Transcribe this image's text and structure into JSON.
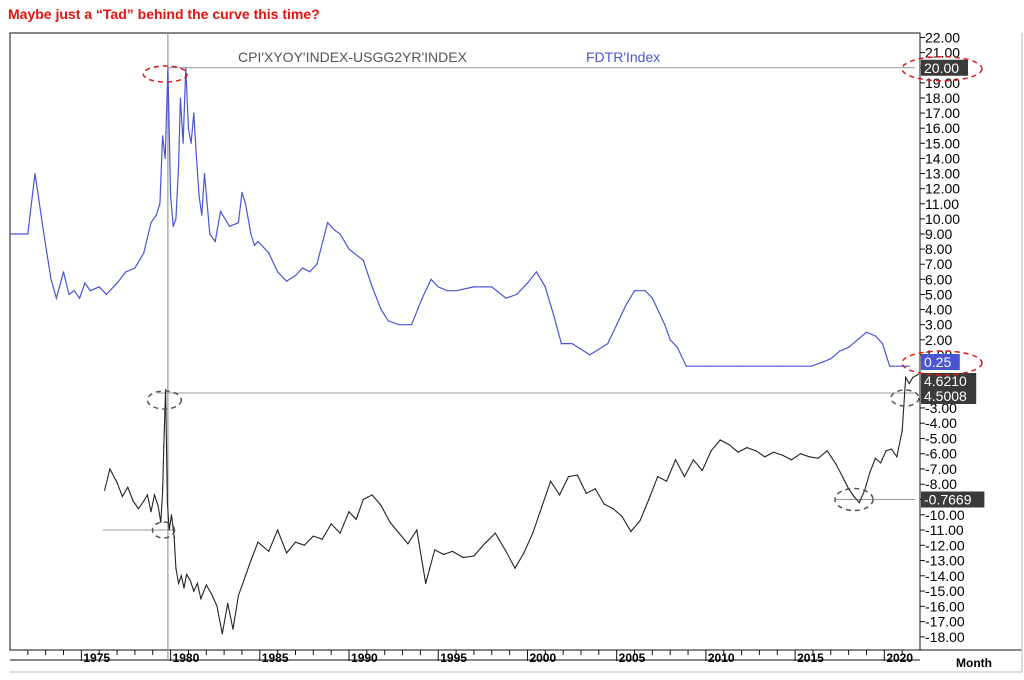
{
  "headline": "Maybe just a “Tad” behind the curve this time?",
  "colors": {
    "headline": "#e8100f",
    "fdtr_line": "#4a55d6",
    "spread_line": "#222222",
    "badge_dark": "#3a3a3a",
    "badge_blue": "#4a55d6",
    "annotation_red": "#d81b1b",
    "annotation_gray": "#555555"
  },
  "x_unit_label": "Month",
  "chart_data": [
    {
      "type": "line",
      "panel": "top",
      "legend": [
        {
          "label": "CPI'XYOY'INDEX-USGG2YR'INDEX",
          "color": "#555555"
        },
        {
          "label": "FDTR'Index",
          "color": "#4a55d6"
        }
      ],
      "series": [
        {
          "name": "FDTR'Index",
          "x": [
            1971.0,
            1972.0,
            1972.4,
            1972.9,
            1973.3,
            1973.6,
            1974.0,
            1974.3,
            1974.6,
            1974.9,
            1975.2,
            1975.5,
            1976.0,
            1976.4,
            1977.0,
            1977.5,
            1978.0,
            1978.5,
            1978.9,
            1979.2,
            1979.4,
            1979.55,
            1979.7,
            1979.85,
            1980.0,
            1980.15,
            1980.3,
            1980.45,
            1980.55,
            1980.7,
            1980.85,
            1981.0,
            1981.15,
            1981.3,
            1981.45,
            1981.6,
            1981.75,
            1981.9,
            1982.2,
            1982.5,
            1982.8,
            1983.3,
            1983.8,
            1984.0,
            1984.2,
            1984.5,
            1984.7,
            1984.9,
            1985.5,
            1986.0,
            1986.5,
            1987.0,
            1987.4,
            1987.8,
            1988.2,
            1988.8,
            1989.2,
            1989.5,
            1990.0,
            1990.8,
            1991.3,
            1991.8,
            1992.2,
            1992.8,
            1993.5,
            1994.1,
            1994.6,
            1995.0,
            1995.5,
            1996.0,
            1997.0,
            1998.0,
            1998.8,
            1999.4,
            2000.0,
            2000.5,
            2001.0,
            2001.5,
            2001.9,
            2002.5,
            2003.5,
            2004.5,
            2005.0,
            2005.5,
            2006.0,
            2006.6,
            2007.0,
            2007.7,
            2008.0,
            2008.4,
            2008.9,
            2010.0,
            2012.0,
            2014.0,
            2015.9,
            2016.5,
            2017.0,
            2017.5,
            2018.0,
            2018.5,
            2019.0,
            2019.5,
            2019.9,
            2020.1,
            2020.3,
            2021.0,
            2021.4
          ],
          "values": [
            9.0,
            9.0,
            13.0,
            9.0,
            6.0,
            4.75,
            6.5,
            5.0,
            5.25,
            4.75,
            5.75,
            5.25,
            5.5,
            5.0,
            5.75,
            6.5,
            6.75,
            7.75,
            9.75,
            10.25,
            11.0,
            15.5,
            14.0,
            20.0,
            11.5,
            9.5,
            10.0,
            13.5,
            18.0,
            15.0,
            20.0,
            16.0,
            15.0,
            17.0,
            14.0,
            11.5,
            10.25,
            13.0,
            9.0,
            8.5,
            10.5,
            9.5,
            9.75,
            11.75,
            11.0,
            9.0,
            8.25,
            8.5,
            7.75,
            6.5,
            5.875,
            6.25,
            6.75,
            6.5,
            7.0,
            9.75,
            9.25,
            9.0,
            8.0,
            7.25,
            5.5,
            4.0,
            3.25,
            3.0,
            3.0,
            4.75,
            6.0,
            5.5,
            5.25,
            5.25,
            5.5,
            5.5,
            4.75,
            5.0,
            5.75,
            6.5,
            5.5,
            3.5,
            1.75,
            1.75,
            1.0,
            1.75,
            3.0,
            4.25,
            5.25,
            5.25,
            4.75,
            3.0,
            2.0,
            1.5,
            0.25,
            0.25,
            0.25,
            0.25,
            0.25,
            0.5,
            0.75,
            1.25,
            1.5,
            2.0,
            2.5,
            2.25,
            1.75,
            1.0,
            0.25,
            0.25,
            0.25
          ]
        },
        {
          "name": "CPI'XYOY'INDEX-USGG2YR'INDEX",
          "x": [
            1976.3,
            1976.6,
            1977.0,
            1977.3,
            1977.6,
            1977.9,
            1978.2,
            1978.5,
            1978.7,
            1978.9,
            1979.1,
            1979.3,
            1979.45,
            1979.55,
            1979.62,
            1979.72,
            1979.82,
            1979.92,
            1980.05,
            1980.2,
            1980.3,
            1980.45,
            1980.6,
            1980.75,
            1980.9,
            1981.1,
            1981.3,
            1981.5,
            1981.7,
            1982.0,
            1982.3,
            1982.6,
            1982.9,
            1983.2,
            1983.5,
            1983.8,
            1984.2,
            1984.5,
            1984.9,
            1985.5,
            1986.0,
            1986.5,
            1987.0,
            1987.5,
            1988.0,
            1988.5,
            1989.0,
            1989.5,
            1990.0,
            1990.4,
            1990.8,
            1991.3,
            1991.8,
            1992.3,
            1992.8,
            1993.3,
            1993.8,
            1994.3,
            1994.8,
            1995.3,
            1995.8,
            1996.4,
            1997.0,
            1997.6,
            1998.2,
            1998.8,
            1999.3,
            1999.8,
            2000.3,
            2000.8,
            2001.3,
            2001.8,
            2002.3,
            2002.8,
            2003.3,
            2003.8,
            2004.3,
            2004.8,
            2005.3,
            2005.8,
            2006.3,
            2006.8,
            2007.3,
            2007.8,
            2008.3,
            2008.8,
            2009.3,
            2009.8,
            2010.3,
            2010.8,
            2011.3,
            2011.8,
            2012.3,
            2012.8,
            2013.3,
            2013.8,
            2014.3,
            2014.8,
            2015.3,
            2015.8,
            2016.3,
            2016.8,
            2017.3,
            2017.7,
            2018.0,
            2018.3,
            2018.6,
            2018.9,
            2019.2,
            2019.5,
            2019.8,
            2020.1,
            2020.4,
            2020.7,
            2021.0,
            2021.2,
            2021.4,
            2021.6,
            2021.9
          ],
          "values": [
            -8.4,
            -7.0,
            -7.9,
            -8.8,
            -8.2,
            -9.1,
            -9.6,
            -9.1,
            -8.7,
            -9.8,
            -8.7,
            -9.4,
            -10.5,
            -8.5,
            -5.5,
            -1.8,
            -9.2,
            -11.0,
            -10.0,
            -11.5,
            -13.5,
            -14.5,
            -14.0,
            -14.8,
            -13.9,
            -14.3,
            -15.0,
            -14.5,
            -15.5,
            -14.6,
            -15.2,
            -16.0,
            -17.8,
            -15.8,
            -17.5,
            -15.3,
            -14.0,
            -13.0,
            -11.8,
            -12.4,
            -11.0,
            -12.5,
            -11.8,
            -12.0,
            -11.4,
            -11.6,
            -10.6,
            -11.2,
            -9.8,
            -10.3,
            -9.0,
            -8.7,
            -9.4,
            -10.5,
            -11.2,
            -11.9,
            -11.0,
            -14.5,
            -12.3,
            -12.6,
            -12.4,
            -12.8,
            -12.7,
            -11.9,
            -11.2,
            -12.4,
            -13.5,
            -12.5,
            -11.2,
            -9.5,
            -7.8,
            -8.7,
            -7.5,
            -7.4,
            -8.6,
            -8.3,
            -9.3,
            -9.6,
            -10.1,
            -11.1,
            -10.4,
            -9.0,
            -7.5,
            -7.8,
            -6.4,
            -7.5,
            -6.4,
            -7.1,
            -5.8,
            -5.1,
            -5.4,
            -5.9,
            -5.6,
            -5.8,
            -6.2,
            -5.9,
            -6.1,
            -6.4,
            -6.0,
            -6.2,
            -6.3,
            -5.8,
            -6.7,
            -7.6,
            -8.3,
            -8.8,
            -9.2,
            -8.4,
            -7.2,
            -6.3,
            -6.6,
            -5.8,
            -5.7,
            -6.2,
            -4.5,
            -1.0,
            -1.4,
            -1.0,
            -0.8
          ]
        }
      ],
      "right_axis_ticks": [
        "22.00",
        "21.00",
        "20.00",
        "19.00",
        "18.00",
        "17.00",
        "16.00",
        "15.00",
        "14.00",
        "13.00",
        "12.00",
        "11.00",
        "10.00",
        "9.00",
        "8.00",
        "7.00",
        "6.00",
        "5.00",
        "4.00",
        "3.00",
        "2.00",
        "1.00"
      ],
      "ylim": [
        0.0,
        22.3
      ],
      "value_tags": [
        {
          "label": "20.00",
          "style": "dark"
        },
        {
          "label": "0.25",
          "style": "blue"
        }
      ]
    },
    {
      "type": "line",
      "panel": "bottom",
      "series_ref": "CPI'XYOY'INDEX-USGG2YR'INDEX",
      "right_axis_ticks": [
        "-3.00",
        "-4.00",
        "-5.00",
        "-6.00",
        "-7.00",
        "-8.00",
        "-9.00",
        "-10.00",
        "-11.00",
        "-12.00",
        "-13.00",
        "-14.00",
        "-15.00",
        "-16.00",
        "-17.00",
        "-18.00"
      ],
      "ylim": [
        -18.6,
        -1.3
      ],
      "value_tags": [
        {
          "label": "4.6210",
          "style": "dark"
        },
        {
          "label": "4.5008",
          "style": "dark"
        },
        {
          "label": "-0.7669",
          "style": "dark"
        }
      ]
    }
  ],
  "x_axis": {
    "xlim": [
      1971.0,
      2022.0
    ],
    "tick_labels": [
      "1975",
      "1980",
      "1985",
      "1990",
      "1995",
      "2000",
      "2005",
      "2010",
      "2015",
      "2020"
    ]
  }
}
